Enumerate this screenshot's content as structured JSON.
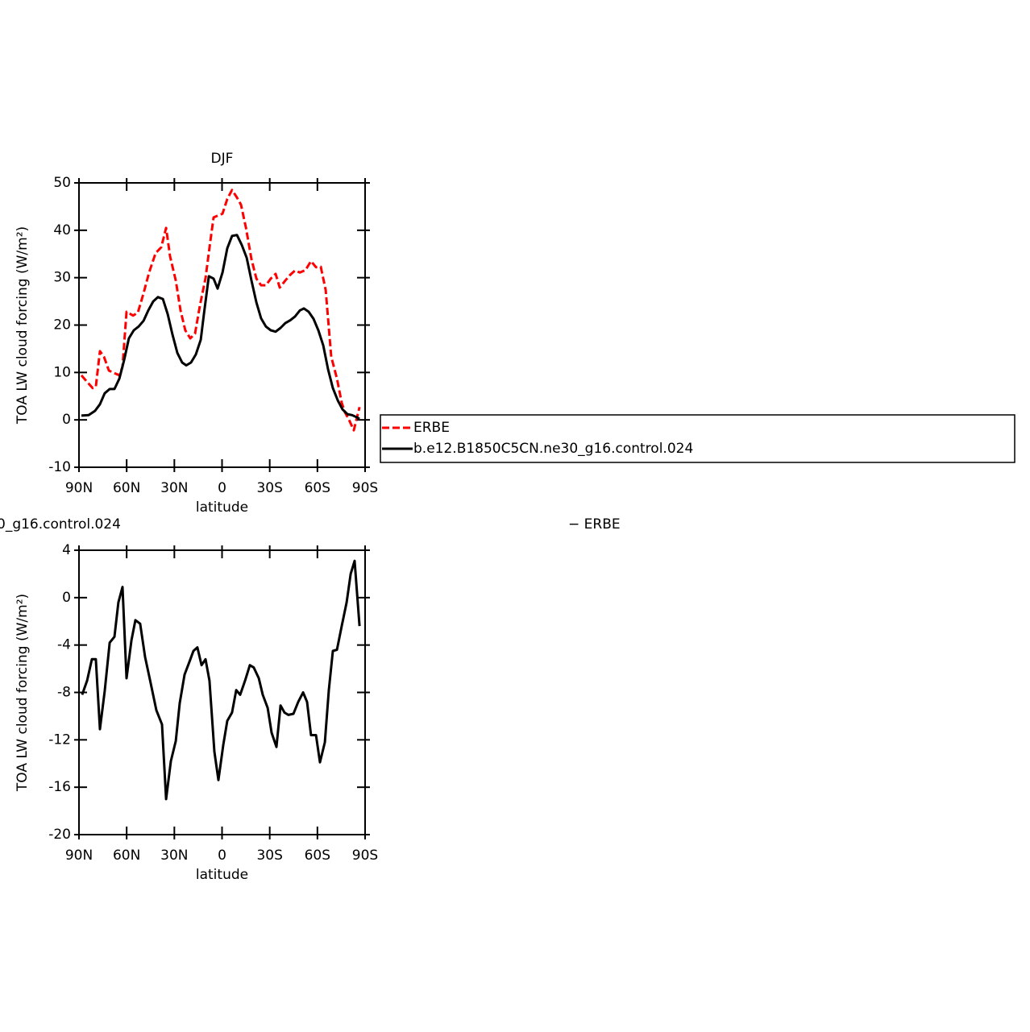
{
  "chart_data": [
    {
      "type": "line",
      "title": "DJF",
      "xlabel": "latitude",
      "ylabel": "TOA LW cloud forcing (W/m²)",
      "xlim": [
        90,
        -90
      ],
      "xticks": [
        {
          "value": 90,
          "label": "90N"
        },
        {
          "value": 60,
          "label": "60N"
        },
        {
          "value": 30,
          "label": "30N"
        },
        0,
        {
          "value": -30,
          "label": "30S"
        },
        {
          "value": -60,
          "label": "60S"
        },
        {
          "value": -90,
          "label": "90S"
        }
      ],
      "ylim": [
        -10,
        50
      ],
      "yticks": [
        -10,
        0,
        10,
        20,
        30,
        40,
        50
      ],
      "legend": "right",
      "series": [
        {
          "name": "ERBE",
          "color": "#ff0000",
          "dash": true,
          "x": [
            88.5,
            84.9,
            81.4,
            79.4,
            76.8,
            74.3,
            71.2,
            64.6,
            62.6,
            60.1,
            56.0,
            53.0,
            49.4,
            45.9,
            41.8,
            38.3,
            35.2,
            32.7,
            29.1,
            26.1,
            23.1,
            20.0,
            17.0,
            14.0,
            10.4,
            7.4,
            5.3,
            1.8,
            -0.3,
            -3.3,
            -6.3,
            -9.4,
            -11.9,
            -15.0,
            -18.5,
            -21.6,
            -24.6,
            -27.6,
            -30.7,
            -33.7,
            -36.3,
            -39.8,
            -42.9,
            -45.9,
            -49.0,
            -52.5,
            -56.0,
            -59.1,
            -62.1,
            -65.2,
            -68.7,
            -72.3,
            -75.3,
            -77.3,
            -79.9,
            -82.9,
            -86.5
          ],
          "values": [
            9.4,
            8.0,
            6.7,
            7.0,
            14.5,
            13.3,
            10.4,
            9.4,
            11.2,
            22.8,
            22.0,
            22.6,
            26.7,
            31.1,
            35.2,
            36.4,
            40.5,
            34.5,
            29.4,
            23.1,
            18.9,
            17.2,
            18.2,
            24.0,
            29.9,
            37.6,
            42.7,
            43.2,
            43.5,
            46.6,
            48.5,
            46.9,
            45.4,
            40.6,
            33.9,
            29.8,
            28.4,
            28.4,
            29.8,
            30.8,
            27.9,
            29.4,
            30.6,
            31.5,
            31.1,
            31.6,
            33.5,
            32.2,
            32.3,
            27.4,
            13.3,
            8.7,
            3.6,
            1.6,
            0.0,
            -2.2,
            2.7
          ]
        },
        {
          "name": "b.e12.B1850C5CN.ne30_g16.control.024",
          "color": "#000000",
          "dash": false,
          "x": [
            88.5,
            83.9,
            79.9,
            76.8,
            73.8,
            70.7,
            67.7,
            64.6,
            61.6,
            58.6,
            55.5,
            52.5,
            49.4,
            46.4,
            43.3,
            40.3,
            37.2,
            34.2,
            31.2,
            28.1,
            25.1,
            22.5,
            19.5,
            16.5,
            13.4,
            11.4,
            8.3,
            5.3,
            2.8,
            -0.3,
            -3.3,
            -6.3,
            -9.4,
            -12.4,
            -15.5,
            -18.5,
            -21.6,
            -24.6,
            -27.6,
            -30.7,
            -33.7,
            -36.8,
            -39.8,
            -42.9,
            -45.9,
            -49.0,
            -51.5,
            -54.5,
            -57.6,
            -60.6,
            -63.7,
            -66.7,
            -69.7,
            -72.8,
            -75.8,
            -78.9,
            -81.9,
            -85.0,
            -86.5
          ],
          "values": [
            0.9,
            1.0,
            1.9,
            3.3,
            5.6,
            6.5,
            6.5,
            8.7,
            12.6,
            17.2,
            18.9,
            19.7,
            20.9,
            23.1,
            25.0,
            25.9,
            25.5,
            22.3,
            18.0,
            14.1,
            12.1,
            11.5,
            12.1,
            13.8,
            16.9,
            22.3,
            30.3,
            29.8,
            27.7,
            31.1,
            36.2,
            38.8,
            39.0,
            36.9,
            34.2,
            29.4,
            24.8,
            21.4,
            19.7,
            18.9,
            18.6,
            19.4,
            20.4,
            21.0,
            21.8,
            23.1,
            23.5,
            22.8,
            21.3,
            18.9,
            15.7,
            10.7,
            6.7,
            4.1,
            2.2,
            1.2,
            1.0,
            0.5,
            0.2
          ]
        }
      ]
    },
    {
      "type": "line",
      "title": "0_g16.control.024",
      "title_right": "− ERBE",
      "xlabel": "latitude",
      "ylabel": "TOA LW cloud forcing (W/m²)",
      "xlim": [
        90,
        -90
      ],
      "xticks": [
        {
          "value": 90,
          "label": "90N"
        },
        {
          "value": 60,
          "label": "60N"
        },
        {
          "value": 30,
          "label": "30N"
        },
        0,
        {
          "value": -30,
          "label": "30S"
        },
        {
          "value": -60,
          "label": "60S"
        },
        {
          "value": -90,
          "label": "90S"
        }
      ],
      "ylim": [
        -20,
        4
      ],
      "yticks": [
        -20,
        -16,
        -12,
        -8,
        -4,
        0,
        4
      ],
      "series": [
        {
          "color": "#000000",
          "dash": false,
          "x": [
            88.0,
            84.9,
            81.9,
            79.4,
            76.8,
            73.8,
            70.7,
            67.7,
            65.2,
            62.6,
            60.1,
            57.0,
            54.5,
            51.5,
            48.4,
            44.9,
            41.3,
            37.8,
            35.2,
            32.2,
            29.1,
            26.6,
            23.6,
            20.5,
            18.0,
            15.5,
            12.9,
            10.4,
            7.9,
            4.8,
            2.3,
            -0.8,
            -3.3,
            -6.3,
            -8.9,
            -11.4,
            -14.5,
            -17.5,
            -20.0,
            -23.1,
            -25.6,
            -28.7,
            -31.2,
            -34.2,
            -36.8,
            -39.3,
            -41.8,
            -44.9,
            -47.9,
            -51.0,
            -53.5,
            -56.0,
            -59.1,
            -61.6,
            -64.7,
            -67.2,
            -69.7,
            -72.3,
            -75.3,
            -78.4,
            -80.9,
            -83.4,
            -86.5
          ],
          "values": [
            -8.2,
            -7.0,
            -5.2,
            -5.2,
            -11.1,
            -7.9,
            -3.8,
            -3.3,
            -0.4,
            0.9,
            -6.8,
            -3.6,
            -1.9,
            -2.2,
            -5.0,
            -7.2,
            -9.5,
            -10.7,
            -17.0,
            -13.8,
            -12.1,
            -8.9,
            -6.5,
            -5.4,
            -4.5,
            -4.2,
            -5.7,
            -5.2,
            -7.0,
            -13.0,
            -15.4,
            -12.4,
            -10.4,
            -9.7,
            -7.8,
            -8.2,
            -7.0,
            -5.7,
            -5.9,
            -6.8,
            -8.2,
            -9.3,
            -11.4,
            -12.6,
            -9.1,
            -9.7,
            -9.9,
            -9.8,
            -8.8,
            -8.0,
            -8.8,
            -11.6,
            -11.6,
            -13.9,
            -12.2,
            -7.8,
            -4.5,
            -4.4,
            -2.4,
            -0.4,
            2.0,
            3.1,
            -2.4
          ]
        }
      ]
    }
  ]
}
